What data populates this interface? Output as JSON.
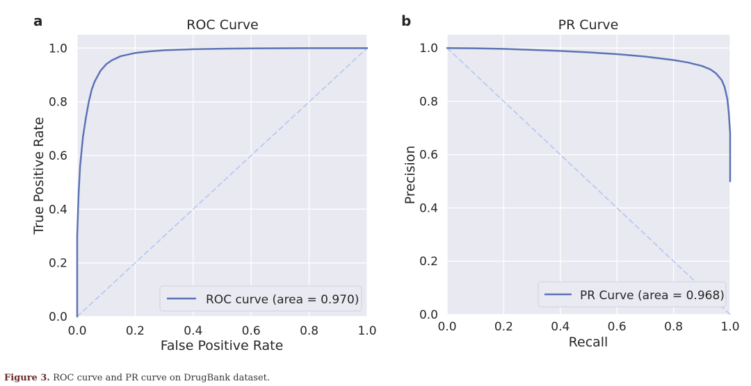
{
  "panels": [
    {
      "letter": "a",
      "title": "ROC Curve"
    },
    {
      "letter": "b",
      "title": "PR Curve"
    }
  ],
  "chart_data": [
    {
      "type": "line",
      "title": "ROC Curve",
      "xlabel": "False Positive Rate",
      "ylabel": "True Positive Rate",
      "xlim": [
        0,
        1
      ],
      "ylim": [
        0,
        1.05
      ],
      "xticks": [
        0.0,
        0.2,
        0.4,
        0.6,
        0.8,
        1.0
      ],
      "yticks": [
        0.0,
        0.2,
        0.4,
        0.6,
        0.8,
        1.0
      ],
      "x_tick_labels": [
        "0.0",
        "0.2",
        "0.4",
        "0.6",
        "0.8",
        "1.0"
      ],
      "y_tick_labels": [
        "0.0",
        "0.2",
        "0.4",
        "0.6",
        "0.8",
        "1.0"
      ],
      "grid": true,
      "legend_position": "lower-right",
      "series": [
        {
          "name": "ROC curve (area = 0.970)",
          "color": "#5b73b4",
          "style": "solid",
          "x": [
            0.0,
            0.0,
            0.005,
            0.01,
            0.02,
            0.03,
            0.04,
            0.05,
            0.06,
            0.08,
            0.1,
            0.12,
            0.15,
            0.2,
            0.25,
            0.3,
            0.4,
            0.5,
            0.6,
            0.8,
            1.0
          ],
          "y": [
            0.0,
            0.3,
            0.46,
            0.56,
            0.67,
            0.74,
            0.8,
            0.845,
            0.875,
            0.915,
            0.94,
            0.955,
            0.97,
            0.982,
            0.988,
            0.992,
            0.996,
            0.998,
            0.999,
            1.0,
            1.0
          ]
        },
        {
          "name": "",
          "color": "#b0c7ee",
          "style": "dashed",
          "x": [
            0.0,
            1.0
          ],
          "y": [
            0.0,
            1.0
          ]
        }
      ]
    },
    {
      "type": "line",
      "title": "PR Curve",
      "xlabel": "Recall",
      "ylabel": "Precision",
      "xlim": [
        0,
        1
      ],
      "ylim": [
        0,
        1.05
      ],
      "xticks": [
        0.0,
        0.2,
        0.4,
        0.6,
        0.8,
        1.0
      ],
      "yticks": [
        0.0,
        0.2,
        0.4,
        0.6,
        0.8,
        1.0
      ],
      "x_tick_labels": [
        "0.0",
        "0.2",
        "0.4",
        "0.6",
        "0.8",
        "1.0"
      ],
      "y_tick_labels": [
        "0.0",
        "0.2",
        "0.4",
        "0.6",
        "0.8",
        "1.0"
      ],
      "grid": true,
      "legend_position": "lower-right",
      "series": [
        {
          "name": "PR Curve (area = 0.968)",
          "color": "#5b73b4",
          "style": "solid",
          "x": [
            0.0,
            0.1,
            0.2,
            0.3,
            0.4,
            0.5,
            0.6,
            0.7,
            0.8,
            0.85,
            0.9,
            0.93,
            0.95,
            0.97,
            0.98,
            0.99,
            0.995,
            1.0,
            1.0
          ],
          "y": [
            1.0,
            0.999,
            0.997,
            0.993,
            0.989,
            0.984,
            0.977,
            0.968,
            0.955,
            0.946,
            0.933,
            0.92,
            0.905,
            0.88,
            0.855,
            0.81,
            0.76,
            0.68,
            0.5
          ]
        },
        {
          "name": "",
          "color": "#b0c7ee",
          "style": "dashed",
          "x": [
            0.0,
            1.0
          ],
          "y": [
            1.0,
            0.0
          ]
        }
      ]
    }
  ],
  "caption": {
    "label": "Figure 3.",
    "text": " ROC curve and PR curve on DrugBank dataset."
  },
  "colors": {
    "plot_background": "#e9e9f2",
    "grid": "#ffffff",
    "main_line": "#5b73b4",
    "diagonal": "#b0c7ee"
  }
}
